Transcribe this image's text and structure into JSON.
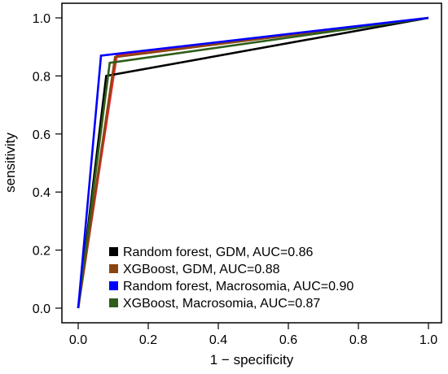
{
  "chart_data": {
    "type": "line",
    "xlabel": "1 − specificity",
    "ylabel": "sensitivity",
    "xlim": [
      0,
      1
    ],
    "ylim": [
      0,
      1
    ],
    "xticks": [
      "0.0",
      "0.2",
      "0.4",
      "0.6",
      "0.8",
      "1.0"
    ],
    "yticks": [
      "0.0",
      "0.2",
      "0.4",
      "0.6",
      "0.8",
      "1.0"
    ],
    "grid": false,
    "legend_position": "bottom-left",
    "series": [
      {
        "name": "Random forest, GDM, AUC=0.86",
        "color": "#000000",
        "x": [
          0,
          0.08,
          1
        ],
        "y": [
          0,
          0.8,
          1
        ]
      },
      {
        "name": "XGBoost, GDM, AUC=0.88",
        "color": "#8B4513",
        "x": [
          0,
          0.105,
          1
        ],
        "y": [
          0,
          0.865,
          1
        ]
      },
      {
        "name": "Random forest, Macrosomia, AUC=0.90",
        "color": "#0000FF",
        "x": [
          0,
          0.065,
          1
        ],
        "y": [
          0,
          0.87,
          1
        ]
      },
      {
        "name": "XGBoost, Macrosomia, AUC=0.87",
        "color": "#2E5E1A",
        "x": [
          0,
          0.09,
          1
        ],
        "y": [
          0,
          0.845,
          1
        ]
      }
    ],
    "extra_lines": [
      {
        "color": "#E8262B",
        "x": [
          0,
          0.11,
          1
        ],
        "y": [
          0,
          0.87,
          1
        ]
      }
    ]
  }
}
